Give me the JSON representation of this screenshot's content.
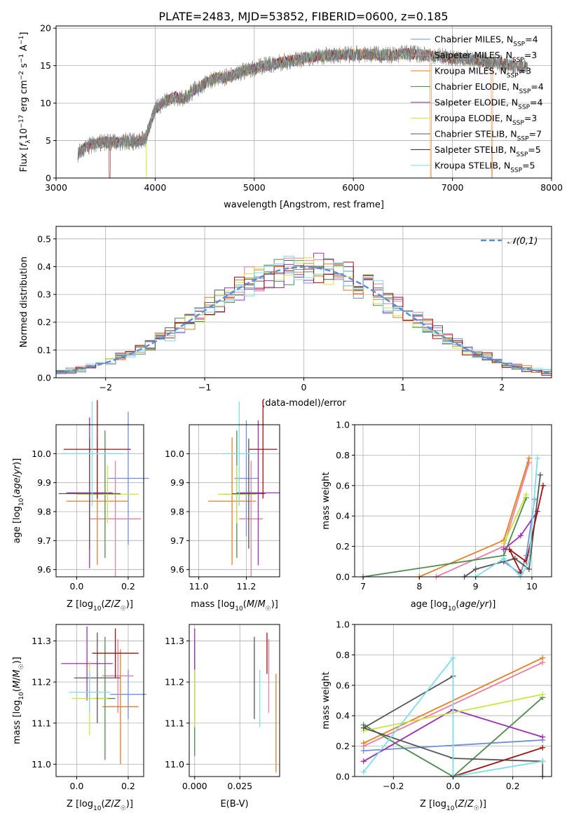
{
  "figure_title": "PLATE=2483, MJD=53852, FIBERID=0600, z=0.185",
  "colors": {
    "Chabrier MILES": "#6f8fd6",
    "Salpeter MILES": "#e87ea0",
    "Kroupa MILES": "#e67e22",
    "Chabrier ELODIE": "#4f8a4f",
    "Salpeter ELODIE": "#9b30b0",
    "Kroupa ELODIE": "#cbe642",
    "Chabrier STELIB": "#555555",
    "Salpeter STELIB": "#a01010",
    "Kroupa STELIB": "#7fdde6",
    "gauss": "#5b8fd6"
  },
  "chart_data": [
    {
      "id": "spectrum",
      "type": "line",
      "xlabel": "wavelength [Angstrom, rest frame]",
      "ylabel": "Flux [f_λ10^-17 erg cm^-2 s^-1 A^-1]",
      "xlim": [
        3000,
        8000
      ],
      "ylim": [
        0,
        20.3
      ],
      "xticks": [
        3000,
        4000,
        5000,
        6000,
        7000,
        8000
      ],
      "yticks": [
        0,
        5,
        10,
        15,
        20
      ],
      "legend_position": "upper right",
      "legend": [
        "Chabrier MILES, N_SSP=4",
        "Salpeter MILES, N_SSP=3",
        "Kroupa MILES, N_SSP=3",
        "Chabrier ELODIE, N_SSP=4",
        "Salpeter ELODIE, N_SSP=4",
        "Kroupa ELODIE, N_SSP=3",
        "Chabrier STELIB, N_SSP=7",
        "Salpeter STELIB, N_SSP=5",
        "Kroupa STELIB, N_SSP=5"
      ],
      "model_range": [
        3220,
        7760
      ],
      "continuum": [
        [
          3220,
          3.2
        ],
        [
          3300,
          4.2
        ],
        [
          3400,
          4.6
        ],
        [
          3500,
          4.8
        ],
        [
          3600,
          4.7
        ],
        [
          3700,
          4.9
        ],
        [
          3800,
          4.8
        ],
        [
          3900,
          5.3
        ],
        [
          4000,
          9.2
        ],
        [
          4100,
          10.2
        ],
        [
          4200,
          10.8
        ],
        [
          4300,
          10.6
        ],
        [
          4400,
          11.8
        ],
        [
          4500,
          12.6
        ],
        [
          4600,
          13.3
        ],
        [
          4700,
          13.4
        ],
        [
          4800,
          13.8
        ],
        [
          4900,
          14.3
        ],
        [
          5000,
          14.6
        ],
        [
          5100,
          15.0
        ],
        [
          5200,
          15.2
        ],
        [
          5300,
          15.5
        ],
        [
          5400,
          15.7
        ],
        [
          5500,
          16.0
        ],
        [
          5600,
          16.2
        ],
        [
          5700,
          16.3
        ],
        [
          5800,
          16.4
        ],
        [
          5900,
          16.4
        ],
        [
          6000,
          16.5
        ],
        [
          6100,
          16.5
        ],
        [
          6200,
          16.5
        ],
        [
          6300,
          16.4
        ],
        [
          6400,
          16.4
        ],
        [
          6500,
          16.6
        ],
        [
          6600,
          16.6
        ],
        [
          6700,
          16.4
        ],
        [
          6800,
          16.3
        ],
        [
          6900,
          16.2
        ],
        [
          7000,
          16.0
        ],
        [
          7100,
          16.0
        ],
        [
          7200,
          15.8
        ],
        [
          7300,
          15.6
        ],
        [
          7400,
          15.5
        ],
        [
          7500,
          15.3
        ],
        [
          7600,
          15.0
        ],
        [
          7700,
          14.9
        ],
        [
          7760,
          14.8
        ]
      ],
      "data_dropouts": [
        {
          "series": "Salpeter STELIB",
          "wavelength": 3540
        },
        {
          "series": "Kroupa ELODIE",
          "wavelength": 3910
        },
        {
          "series": "Kroupa MILES",
          "wavelength": 6780
        },
        {
          "series": "Kroupa MILES",
          "wavelength": 7400
        }
      ]
    },
    {
      "id": "residual_hist",
      "type": "histogram",
      "xlabel": "(data-model)/error",
      "ylabel": "Normed distribution",
      "xlim": [
        -2.5,
        2.5
      ],
      "ylim": [
        0,
        0.545
      ],
      "xticks": [
        -2,
        -1,
        0,
        1,
        2
      ],
      "yticks": [
        0.0,
        0.1,
        0.2,
        0.3,
        0.4,
        0.5
      ],
      "legend_position": "upper right",
      "legend": [
        "𝒩(0,1)"
      ],
      "bin_width": 0.1
    },
    {
      "id": "Z_age",
      "type": "errorbar",
      "xlabel": "Z [log10(Z/Z☉)]",
      "ylabel": "age  [log10(age/yr)]",
      "xlim": [
        -0.08,
        0.26
      ],
      "ylim": [
        9.575,
        10.1
      ],
      "xticks": [
        0.0,
        0.2
      ],
      "yticks": [
        9.6,
        9.7,
        9.8,
        9.9,
        10.0
      ],
      "points": [
        {
          "series": "Chabrier MILES",
          "x": 0.2,
          "xerr": 0.08,
          "y": 9.915,
          "yerr": 0.23
        },
        {
          "series": "Salpeter MILES",
          "x": 0.15,
          "xerr": 0.1,
          "y": 9.775,
          "yerr": 0.2
        },
        {
          "series": "Kroupa MILES",
          "x": 0.08,
          "xerr": 0.12,
          "y": 9.836,
          "yerr": 0.22
        },
        {
          "series": "Chabrier ELODIE",
          "x": 0.11,
          "xerr": 0.06,
          "y": 9.86,
          "yerr": 0.22
        },
        {
          "series": "Salpeter ELODIE",
          "x": 0.05,
          "xerr": 0.09,
          "y": 9.865,
          "yerr": 0.26
        },
        {
          "series": "Kroupa ELODIE",
          "x": 0.12,
          "xerr": 0.12,
          "y": 9.86,
          "yerr": 0.1
        },
        {
          "series": "Chabrier STELIB",
          "x": 0.05,
          "xerr": 0.12,
          "y": 9.862,
          "yerr": 0.19
        },
        {
          "series": "Salpeter STELIB",
          "x": 0.08,
          "xerr": 0.13,
          "y": 10.015,
          "yerr": 0.17
        },
        {
          "series": "Kroupa STELIB",
          "x": 0.06,
          "xerr": 0.12,
          "y": 10.0,
          "yerr": 0.18
        }
      ]
    },
    {
      "id": "mass_age",
      "type": "errorbar",
      "xlabel": "mass [log10(M/M☉)]",
      "ylabel": "",
      "xlim": [
        10.96,
        11.34
      ],
      "ylim": [
        9.575,
        10.1
      ],
      "xticks": [
        11.0,
        11.2
      ],
      "yticks": [
        9.6,
        9.7,
        9.8,
        9.9,
        10.0
      ],
      "points": [
        {
          "series": "Chabrier MILES",
          "x": 11.2,
          "xerr": 0.05,
          "y": 9.915,
          "yerr": 0.2
        },
        {
          "series": "Salpeter MILES",
          "x": 11.22,
          "xerr": 0.05,
          "y": 9.775,
          "yerr": 0.2
        },
        {
          "series": "Kroupa MILES",
          "x": 11.14,
          "xerr": 0.1,
          "y": 9.836,
          "yerr": 0.22
        },
        {
          "series": "Chabrier ELODIE",
          "x": 11.16,
          "xerr": 0.06,
          "y": 9.86,
          "yerr": 0.22
        },
        {
          "series": "Salpeter ELODIE",
          "x": 11.25,
          "xerr": 0.09,
          "y": 9.865,
          "yerr": 0.25
        },
        {
          "series": "Kroupa ELODIE",
          "x": 11.16,
          "xerr": 0.08,
          "y": 9.86,
          "yerr": 0.1
        },
        {
          "series": "Chabrier STELIB",
          "x": 11.21,
          "xerr": 0.07,
          "y": 9.862,
          "yerr": 0.19
        },
        {
          "series": "Salpeter STELIB",
          "x": 11.27,
          "xerr": 0.06,
          "y": 10.015,
          "yerr": 0.17
        },
        {
          "series": "Kroupa STELIB",
          "x": 11.17,
          "xerr": 0.07,
          "y": 10.0,
          "yerr": 0.18
        }
      ]
    },
    {
      "id": "age_weight",
      "type": "line",
      "xlabel": "age  [log10(age/yr)]",
      "ylabel": "mass weight",
      "xlim": [
        6.85,
        10.35
      ],
      "ylim": [
        0,
        1.0
      ],
      "xticks": [
        7,
        8,
        9,
        10
      ],
      "yticks": [
        0.0,
        0.2,
        0.4,
        0.6,
        0.8,
        1.0
      ],
      "series": [
        {
          "name": "Chabrier MILES",
          "points": [
            [
              9.5,
              0.1
            ],
            [
              9.8,
              0.02
            ],
            [
              9.9,
              0.14
            ],
            [
              10.05,
              0.51
            ]
          ]
        },
        {
          "name": "Salpeter MILES",
          "points": [
            [
              8.3,
              0.0
            ],
            [
              9.5,
              0.2
            ],
            [
              9.95,
              0.75
            ]
          ]
        },
        {
          "name": "Kroupa MILES",
          "points": [
            [
              8.0,
              0.0
            ],
            [
              9.5,
              0.24
            ],
            [
              9.95,
              0.78
            ]
          ]
        },
        {
          "name": "Chabrier ELODIE",
          "points": [
            [
              7.0,
              0.0
            ],
            [
              9.5,
              0.14
            ],
            [
              9.9,
              0.52
            ]
          ]
        },
        {
          "name": "Salpeter ELODIE",
          "points": [
            [
              9.5,
              0.18
            ],
            [
              9.8,
              0.27
            ],
            [
              10.1,
              0.43
            ]
          ]
        },
        {
          "name": "Kroupa ELODIE",
          "points": [
            [
              9.5,
              0.22
            ],
            [
              9.9,
              0.54
            ]
          ]
        },
        {
          "name": "Chabrier STELIB",
          "points": [
            [
              8.8,
              0.0
            ],
            [
              9.0,
              0.05
            ],
            [
              9.5,
              0.1
            ],
            [
              9.7,
              0.12
            ],
            [
              9.95,
              0.05
            ],
            [
              10.15,
              0.67
            ]
          ]
        },
        {
          "name": "Salpeter STELIB",
          "points": [
            [
              9.8,
              0.03
            ],
            [
              9.6,
              0.18
            ],
            [
              9.9,
              0.1
            ],
            [
              10.2,
              0.6
            ]
          ]
        },
        {
          "name": "Kroupa STELIB",
          "points": [
            [
              9.0,
              0.0
            ],
            [
              9.5,
              0.12
            ],
            [
              9.8,
              0.0
            ],
            [
              9.95,
              0.1
            ],
            [
              10.1,
              0.78
            ]
          ]
        }
      ]
    },
    {
      "id": "Z_mass",
      "type": "errorbar",
      "xlabel": "Z [log10(Z/Z☉)]",
      "ylabel": "mass [log10(M/M☉)]",
      "xlim": [
        -0.08,
        0.26
      ],
      "ylim": [
        10.97,
        11.34
      ],
      "xticks": [
        0.0,
        0.2
      ],
      "yticks": [
        11.0,
        11.1,
        11.2,
        11.3
      ],
      "points": [
        {
          "series": "Chabrier MILES",
          "x": 0.2,
          "xerr": 0.07,
          "y": 11.17,
          "yerr": 0.06
        },
        {
          "series": "Salpeter MILES",
          "x": 0.16,
          "xerr": 0.06,
          "y": 11.215,
          "yerr": 0.09
        },
        {
          "series": "Kroupa MILES",
          "x": 0.17,
          "xerr": 0.07,
          "y": 11.14,
          "yerr": 0.14
        },
        {
          "series": "Chabrier ELODIE",
          "x": 0.11,
          "xerr": 0.04,
          "y": 11.16,
          "yerr": 0.15
        },
        {
          "series": "Salpeter ELODIE",
          "x": 0.04,
          "xerr": 0.1,
          "y": 11.245,
          "yerr": 0.09
        },
        {
          "series": "Kroupa ELODIE",
          "x": 0.05,
          "xerr": 0.07,
          "y": 11.16,
          "yerr": 0.09
        },
        {
          "series": "Chabrier STELIB",
          "x": 0.08,
          "xerr": 0.09,
          "y": 11.21,
          "yerr": 0.11
        },
        {
          "series": "Salpeter STELIB",
          "x": 0.15,
          "xerr": 0.09,
          "y": 11.27,
          "yerr": 0.06
        },
        {
          "series": "Kroupa STELIB",
          "x": 0.05,
          "xerr": 0.08,
          "y": 11.175,
          "yerr": 0.05
        }
      ]
    },
    {
      "id": "ebv_mass",
      "type": "errorbar",
      "xlabel": "E(B-V)",
      "ylabel": "",
      "xlim": [
        -0.003,
        0.047
      ],
      "ylim": [
        10.97,
        11.34
      ],
      "xticks": [
        0.0,
        0.025
      ],
      "xticklabels": [
        "0.000",
        "0.025"
      ],
      "yticks": [
        11.0,
        11.1,
        11.2,
        11.3
      ],
      "points": [
        {
          "series": "Chabrier ELODIE",
          "x": 0.0,
          "y": 11.16,
          "yerr": 0.14
        },
        {
          "series": "Salpeter ELODIE",
          "x": 0.0,
          "y": 11.25,
          "yerr": 0.08
        },
        {
          "series": "Kroupa ELODIE",
          "x": 0.0,
          "y": 11.16,
          "yerr": 0.07
        },
        {
          "series": "Chabrier STELIB",
          "x": 0.033,
          "y": 11.21,
          "yerr": 0.1
        },
        {
          "series": "Kroupa STELIB",
          "x": 0.036,
          "y": 11.16,
          "yerr": 0.07
        },
        {
          "series": "Salpeter MILES",
          "x": 0.041,
          "y": 11.215,
          "yerr": 0.09
        },
        {
          "series": "Salpeter STELIB",
          "x": 0.04,
          "y": 11.27,
          "yerr": 0.05
        },
        {
          "series": "Kroupa MILES",
          "x": 0.045,
          "y": 11.1,
          "yerr": 0.12
        }
      ]
    },
    {
      "id": "Z_weight",
      "type": "line",
      "xlabel": "Z [log10(Z/Z☉)]",
      "ylabel": "mass weight",
      "xlim": [
        -0.33,
        0.33
      ],
      "ylim": [
        0,
        1.0
      ],
      "xticks": [
        -0.2,
        0.0,
        0.2
      ],
      "yticks": [
        0.0,
        0.2,
        0.4,
        0.6,
        0.8,
        1.0
      ],
      "series": [
        {
          "name": "Chabrier MILES",
          "points": [
            [
              -0.3,
              0.17
            ],
            [
              0.3,
              0.24
            ]
          ]
        },
        {
          "name": "Salpeter MILES",
          "points": [
            [
              -0.3,
              0.2
            ],
            [
              0.3,
              0.75
            ]
          ]
        },
        {
          "name": "Kroupa MILES",
          "points": [
            [
              -0.3,
              0.22
            ],
            [
              0.3,
              0.78
            ]
          ]
        },
        {
          "name": "Chabrier ELODIE",
          "points": [
            [
              -0.3,
              0.34
            ],
            [
              0.0,
              0.0
            ],
            [
              0.3,
              0.52
            ]
          ]
        },
        {
          "name": "Salpeter ELODIE",
          "points": [
            [
              -0.3,
              0.1
            ],
            [
              0.0,
              0.44
            ],
            [
              0.3,
              0.26
            ]
          ]
        },
        {
          "name": "Kroupa ELODIE",
          "points": [
            [
              -0.3,
              0.3
            ],
            [
              0.3,
              0.54
            ]
          ]
        },
        {
          "name": "Chabrier STELIB",
          "points": [
            [
              0.0,
              0.66
            ],
            [
              -0.3,
              0.32
            ],
            [
              0.0,
              0.12
            ],
            [
              0.3,
              0.1
            ],
            [
              0.3,
              0.0
            ]
          ]
        },
        {
          "name": "Salpeter STELIB",
          "points": [
            [
              0.0,
              0.0
            ],
            [
              0.3,
              0.19
            ]
          ]
        },
        {
          "name": "Kroupa STELIB",
          "points": [
            [
              -0.3,
              0.03
            ],
            [
              0.0,
              0.78
            ],
            [
              0.0,
              0.0
            ],
            [
              0.3,
              0.1
            ]
          ]
        }
      ]
    }
  ]
}
